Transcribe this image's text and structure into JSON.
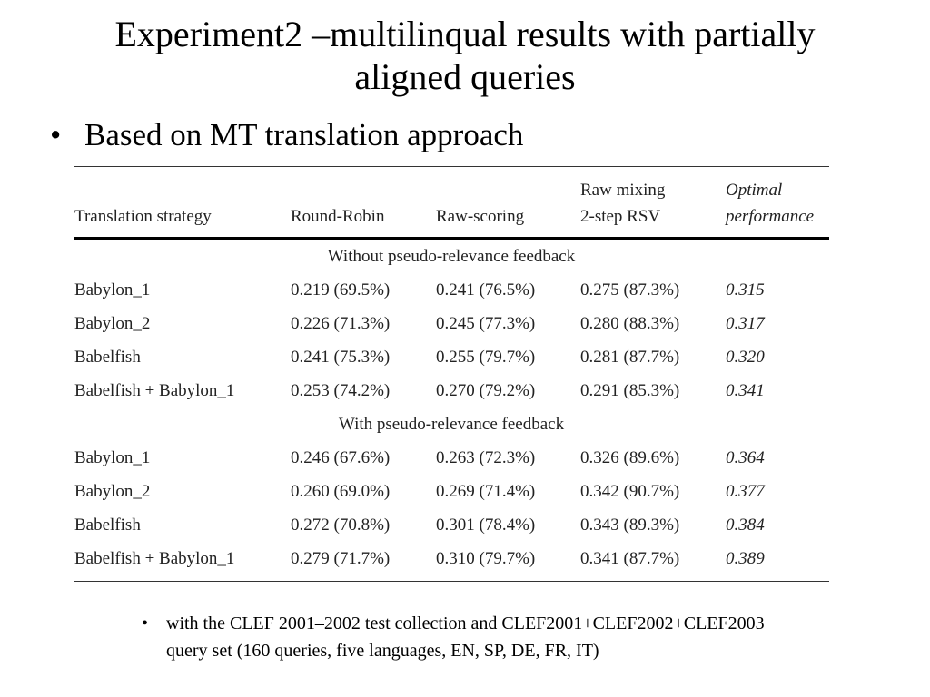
{
  "slide": {
    "title_line1": "Experiment2 –multilinqual results with partially",
    "title_line2": "aligned queries",
    "bullet_marker": "•",
    "bullet": "Based on MT translation approach",
    "note": "with the CLEF 2001–2002 test collection and CLEF2001+CLEF2002+CLEF2003 query set (160 queries, five languages, EN, SP, DE, FR, IT)"
  },
  "table": {
    "headers": {
      "strategy": "Translation strategy",
      "round_robin": "Round-Robin",
      "raw_scoring": "Raw-scoring",
      "raw_mixing_line1": "Raw mixing",
      "raw_mixing_line2": "2-step RSV",
      "optimal_line1": "Optimal",
      "optimal_line2": "performance"
    },
    "section1_title": "Without pseudo-relevance feedback",
    "section1_rows": [
      {
        "strategy": "Babylon_1",
        "round_robin": "0.219 (69.5%)",
        "raw_scoring": "0.241 (76.5%)",
        "raw_mixing": "0.275 (87.3%)",
        "optimal": "0.315"
      },
      {
        "strategy": "Babylon_2",
        "round_robin": "0.226 (71.3%)",
        "raw_scoring": "0.245 (77.3%)",
        "raw_mixing": "0.280 (88.3%)",
        "optimal": "0.317"
      },
      {
        "strategy": "Babelfish",
        "round_robin": "0.241 (75.3%)",
        "raw_scoring": "0.255 (79.7%)",
        "raw_mixing": "0.281 (87.7%)",
        "optimal": "0.320"
      },
      {
        "strategy": "Babelfish + Babylon_1",
        "round_robin": "0.253 (74.2%)",
        "raw_scoring": "0.270 (79.2%)",
        "raw_mixing": "0.291 (85.3%)",
        "optimal": "0.341"
      }
    ],
    "section2_title": "With pseudo-relevance feedback",
    "section2_rows": [
      {
        "strategy": "Babylon_1",
        "round_robin": "0.246 (67.6%)",
        "raw_scoring": "0.263 (72.3%)",
        "raw_mixing": "0.326 (89.6%)",
        "optimal": "0.364"
      },
      {
        "strategy": "Babylon_2",
        "round_robin": "0.260 (69.0%)",
        "raw_scoring": "0.269 (71.4%)",
        "raw_mixing": "0.342 (90.7%)",
        "optimal": "0.377"
      },
      {
        "strategy": "Babelfish",
        "round_robin": "0.272 (70.8%)",
        "raw_scoring": "0.301 (78.4%)",
        "raw_mixing": "0.343 (89.3%)",
        "optimal": "0.384"
      },
      {
        "strategy": "Babelfish + Babylon_1",
        "round_robin": "0.279 (71.7%)",
        "raw_scoring": "0.310 (79.7%)",
        "raw_mixing": "0.341 (87.7%)",
        "optimal": "0.389"
      }
    ]
  }
}
